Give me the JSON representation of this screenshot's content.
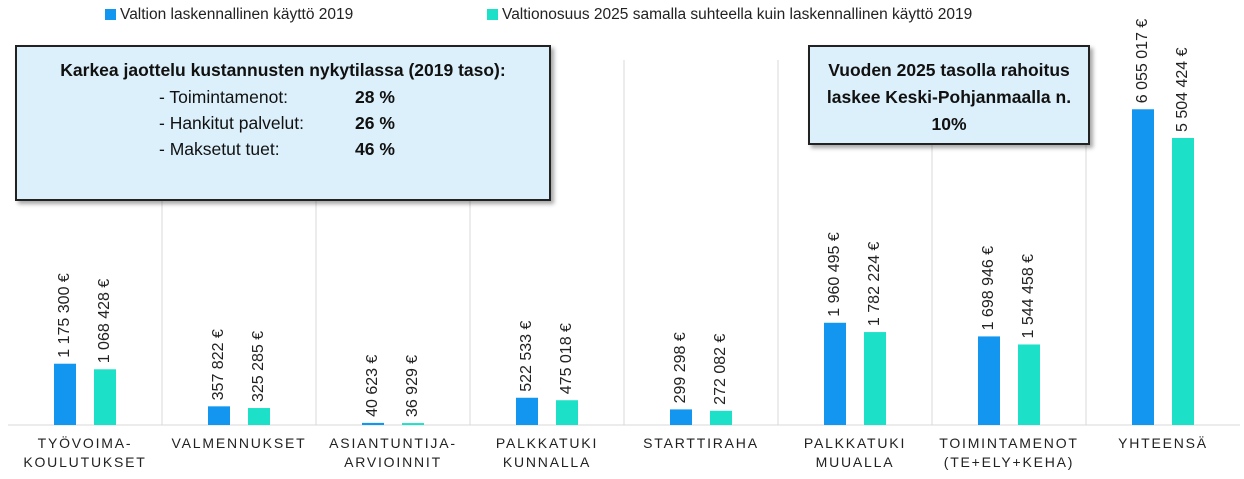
{
  "chart_data": {
    "type": "bar",
    "categories": [
      "TYÖVOIMA-\nKOULUTUKSET",
      "VALMENNUKSET",
      "ASIANTUNTIJA-\nARVIOINNIT",
      "PALKKATUKI\nKUNNALLA",
      "STARTTIRAHA",
      "PALKKATUKI\nMUUALLA",
      "TOIMINTAMENOT\n(TE+ELY+KEHA)",
      "YHTEENSÄ"
    ],
    "series": [
      {
        "name": "Valtion laskennallinen käyttö 2019",
        "color": "#1296f0",
        "values": [
          1175300,
          357822,
          40623,
          522533,
          299298,
          1960495,
          1698946,
          6055017
        ],
        "value_labels": [
          "1 175 300 €",
          "357 822 €",
          "40 623 €",
          "522 533 €",
          "299 298 €",
          "1 960 495 €",
          "1 698 946 €",
          "6 055 017 €"
        ]
      },
      {
        "name": "Valtionosuus 2025 samalla suhteella kuin laskennallinen käyttö 2019",
        "color": "#1de0c8",
        "values": [
          1068428,
          325285,
          36929,
          475018,
          272082,
          1782224,
          1544458,
          5504424
        ],
        "value_labels": [
          "1 068 428 €",
          "325 285 €",
          "36 929 €",
          "475 018 €",
          "272 082 €",
          "1 782 224 €",
          "1 544 458 €",
          "5 504 424 €"
        ]
      }
    ],
    "ylim": [
      0,
      7000000
    ],
    "grid": true,
    "legend": "top",
    "annotations": [
      {
        "title": "Karkea jaottelu kustannusten nykytilassa (2019 taso):",
        "items": [
          [
            "- Toimintamenot:",
            "28 %"
          ],
          [
            "- Hankitut palvelut:",
            "26 %"
          ],
          [
            "- Maksetut tuet:",
            "46 %"
          ]
        ]
      },
      {
        "text": "Vuoden 2025 tasolla rahoitus laskee Keski-Pohjanmaalla n. 10%"
      }
    ]
  }
}
